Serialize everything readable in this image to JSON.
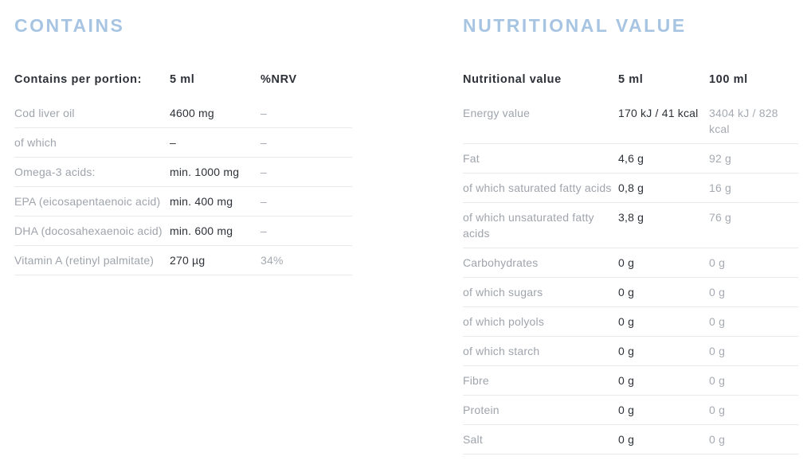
{
  "colors": {
    "title_accent": "#a7c5e2",
    "text_dark": "#2d3138",
    "text_muted": "#9fa4ac",
    "row_border": "#e8e9eb",
    "background": "#ffffff"
  },
  "contains": {
    "title": "CONTAINS",
    "columns": [
      "Contains per portion:",
      "5 ml",
      "%NRV"
    ],
    "rows": [
      {
        "label": "Cod liver oil",
        "v1": "4600 mg",
        "v2": "–"
      },
      {
        "label": "of which",
        "v1": "–",
        "v2": "–"
      },
      {
        "label": "Omega-3 acids:",
        "v1": "min. 1000 mg",
        "v2": "–"
      },
      {
        "label": "EPA (eicosapentaenoic acid)",
        "v1": "min. 400 mg",
        "v2": "–"
      },
      {
        "label": "DHA (docosahexaenoic acid)",
        "v1": "min. 600 mg",
        "v2": "–"
      },
      {
        "label": "Vitamin A (retinyl palmitate)",
        "v1": "270 µg",
        "v2": "34%"
      }
    ]
  },
  "nutritional": {
    "title": "NUTRITIONAL VALUE",
    "columns": [
      "Nutritional value",
      "5 ml",
      "100 ml"
    ],
    "rows": [
      {
        "label": "Energy value",
        "v1": "170 kJ / 41 kcal",
        "v2": "3404 kJ / 828 kcal"
      },
      {
        "label": "Fat",
        "v1": "4,6 g",
        "v2": "92 g"
      },
      {
        "label": "of which saturated fatty acids",
        "v1": "0,8 g",
        "v2": "16 g"
      },
      {
        "label": "of which unsaturated fatty acids",
        "v1": "3,8 g",
        "v2": "76 g"
      },
      {
        "label": "Carbohydrates",
        "v1": "0 g",
        "v2": "0 g"
      },
      {
        "label": "of which sugars",
        "v1": "0 g",
        "v2": "0 g"
      },
      {
        "label": "of which polyols",
        "v1": "0 g",
        "v2": "0 g"
      },
      {
        "label": "of which starch",
        "v1": "0 g",
        "v2": "0 g"
      },
      {
        "label": "Fibre",
        "v1": "0 g",
        "v2": "0 g"
      },
      {
        "label": "Protein",
        "v1": "0 g",
        "v2": "0 g"
      },
      {
        "label": "Salt",
        "v1": "0 g",
        "v2": "0 g"
      }
    ]
  }
}
